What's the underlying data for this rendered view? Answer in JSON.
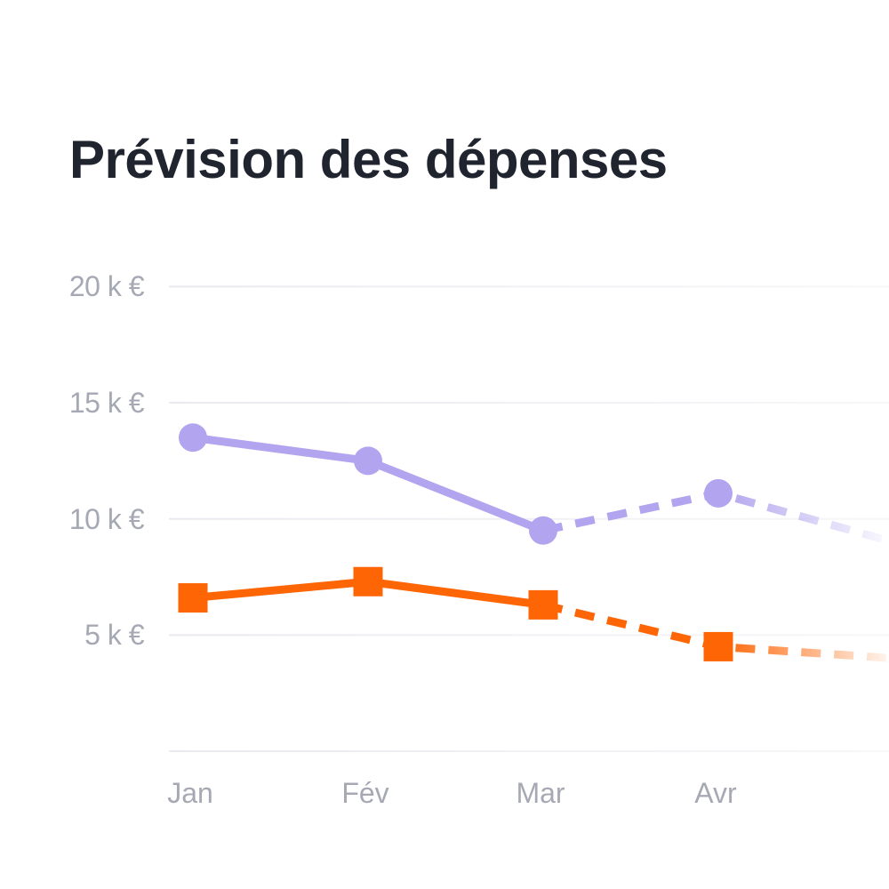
{
  "title": "Prévision des dépenses",
  "colors": {
    "background": "#ffffff",
    "title": "#20242f",
    "axis_label": "#a6a9b4",
    "gridline": "#e9e9f0",
    "series_purple": "#b2a4ee",
    "series_orange": "#fd6505"
  },
  "chart_data": {
    "type": "line",
    "title": "Prévision des dépenses",
    "categories": [
      "Jan",
      "Fév",
      "Mar",
      "Avr"
    ],
    "y_axis": {
      "tick_labels": [
        "20 k €",
        "15 k €",
        "10 k €",
        "5 k €"
      ],
      "tick_values": [
        20,
        15,
        10,
        5
      ],
      "baseline_value": 0,
      "unit": "k €",
      "ylim": [
        0,
        20
      ]
    },
    "grid": "horizontal-only",
    "legend": "none",
    "series": [
      {
        "id": "purple",
        "marker": "circle",
        "color": "#b2a4ee",
        "values_k_eur": [
          13.5,
          12.5,
          9.5,
          11.1
        ],
        "offscreen_next_value_k_eur": 9.0,
        "solid_through_index": 2,
        "solid_through_category": "Mar",
        "style_after": "dashed-fading-forecast"
      },
      {
        "id": "orange",
        "marker": "square",
        "color": "#fd6505",
        "values_k_eur": [
          6.6,
          7.3,
          6.3,
          4.5
        ],
        "offscreen_next_value_k_eur": 4.0,
        "solid_through_index": 2,
        "solid_through_category": "Mar",
        "style_after": "dashed-fading-forecast"
      }
    ]
  }
}
